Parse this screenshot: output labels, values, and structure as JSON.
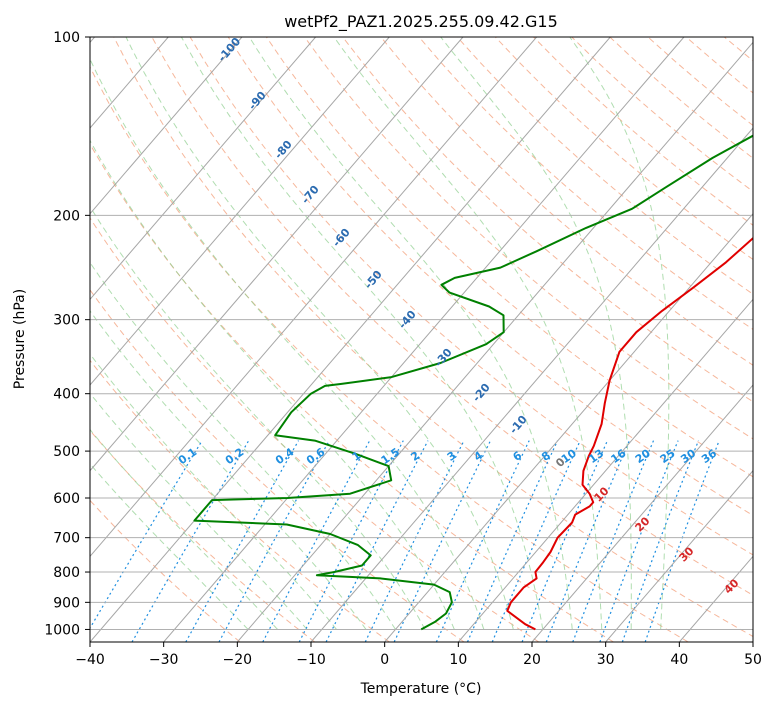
{
  "chart_data": {
    "type": "line",
    "title": "wetPf2_PAZ1.2025.255.09.42.G15",
    "xlabel": "Temperature (°C)",
    "ylabel": "Pressure (hPa)",
    "xlim": [
      -40,
      50
    ],
    "ylim": [
      1050,
      100
    ],
    "y_scale": "log",
    "x_ticks": [
      "−40",
      "−30",
      "−20",
      "−10",
      "0",
      "10",
      "20",
      "30",
      "40",
      "50"
    ],
    "y_ticks": [
      "100",
      "200",
      "300",
      "400",
      "500",
      "600",
      "700",
      "800",
      "900",
      "1000"
    ],
    "grid": true,
    "colors": {
      "temperature": "#e00000",
      "dewpoint": "#008000",
      "isotherm": "#a6a6a6",
      "dry_adiabat": "#f4a582",
      "moist_adiabat": "#8fcf8f",
      "mixing_ratio": "#1f8fe0",
      "isotherm_label": "#2b6bb0",
      "adiabat_label": "#d62728"
    },
    "series": [
      {
        "kind": "temperature",
        "points": [
          [
            19,
            1000
          ],
          [
            17,
            980
          ],
          [
            13,
            930
          ],
          [
            12.5,
            900
          ],
          [
            12.5,
            850
          ],
          [
            13.2,
            820
          ],
          [
            12.3,
            800
          ],
          [
            12.2,
            770
          ],
          [
            12,
            740
          ],
          [
            11.3,
            700
          ],
          [
            11.5,
            660
          ],
          [
            11,
            640
          ],
          [
            12,
            620
          ],
          [
            12,
            610
          ],
          [
            10.5,
            590
          ],
          [
            8.5,
            570
          ],
          [
            7,
            540
          ],
          [
            6,
            510
          ],
          [
            5.5,
            490
          ],
          [
            4,
            450
          ],
          [
            2,
            415
          ],
          [
            0,
            380
          ],
          [
            -2,
            340
          ],
          [
            -2,
            315
          ],
          [
            -1,
            290
          ],
          [
            0.5,
            265
          ],
          [
            2,
            240
          ],
          [
            3,
            215
          ],
          [
            4.5,
            190
          ],
          [
            6,
            170
          ],
          [
            7.5,
            152
          ],
          [
            8.5,
            140
          ],
          [
            11,
            125
          ],
          [
            13,
            112
          ],
          [
            14,
            105
          ],
          [
            14.5,
            100
          ]
        ]
      },
      {
        "kind": "dewpoint",
        "points": [
          [
            3.5,
            1000
          ],
          [
            4.5,
            970
          ],
          [
            5,
            940
          ],
          [
            4.5,
            900
          ],
          [
            3,
            865
          ],
          [
            0,
            840
          ],
          [
            -8,
            820
          ],
          [
            -17,
            810
          ],
          [
            -15,
            800
          ],
          [
            -12,
            780
          ],
          [
            -12,
            750
          ],
          [
            -15,
            720
          ],
          [
            -20,
            690
          ],
          [
            -27,
            665
          ],
          [
            -40,
            655
          ],
          [
            -40,
            605
          ],
          [
            -30,
            600
          ],
          [
            -22,
            590
          ],
          [
            -18,
            560
          ],
          [
            -20,
            530
          ],
          [
            -26,
            505
          ],
          [
            -33,
            480
          ],
          [
            -39,
            470
          ],
          [
            -39.5,
            430
          ],
          [
            -39,
            400
          ],
          [
            -38,
            388
          ],
          [
            -36,
            385
          ],
          [
            -30,
            375
          ],
          [
            -25,
            355
          ],
          [
            -21,
            330
          ],
          [
            -20,
            315
          ],
          [
            -22,
            295
          ],
          [
            -25,
            285
          ],
          [
            -32,
            270
          ],
          [
            -34,
            262
          ],
          [
            -33,
            255
          ],
          [
            -28,
            245
          ],
          [
            -25,
            230
          ],
          [
            -21,
            210
          ],
          [
            -17,
            195
          ],
          [
            -15,
            180
          ],
          [
            -12,
            160
          ],
          [
            -8,
            142
          ],
          [
            -6,
            132
          ],
          [
            -6,
            122
          ],
          [
            -4,
            115
          ],
          [
            -1,
            108
          ],
          [
            2,
            103
          ],
          [
            3,
            100
          ]
        ]
      }
    ],
    "isotherm_labels": [
      "-100",
      "-90",
      "-80",
      "-70",
      "-60",
      "-50",
      "-40",
      "-30",
      "-20",
      "-10"
    ],
    "mixing_ratio_labels": [
      "0.1",
      "0.2",
      "0.4",
      "0.6",
      "1",
      "1.5",
      "2",
      "3",
      "4",
      "6",
      "8",
      "10",
      "13",
      "16",
      "20",
      "25",
      "30",
      "36"
    ],
    "adiabat_labels": [
      "0",
      "10",
      "20",
      "30",
      "40"
    ]
  }
}
